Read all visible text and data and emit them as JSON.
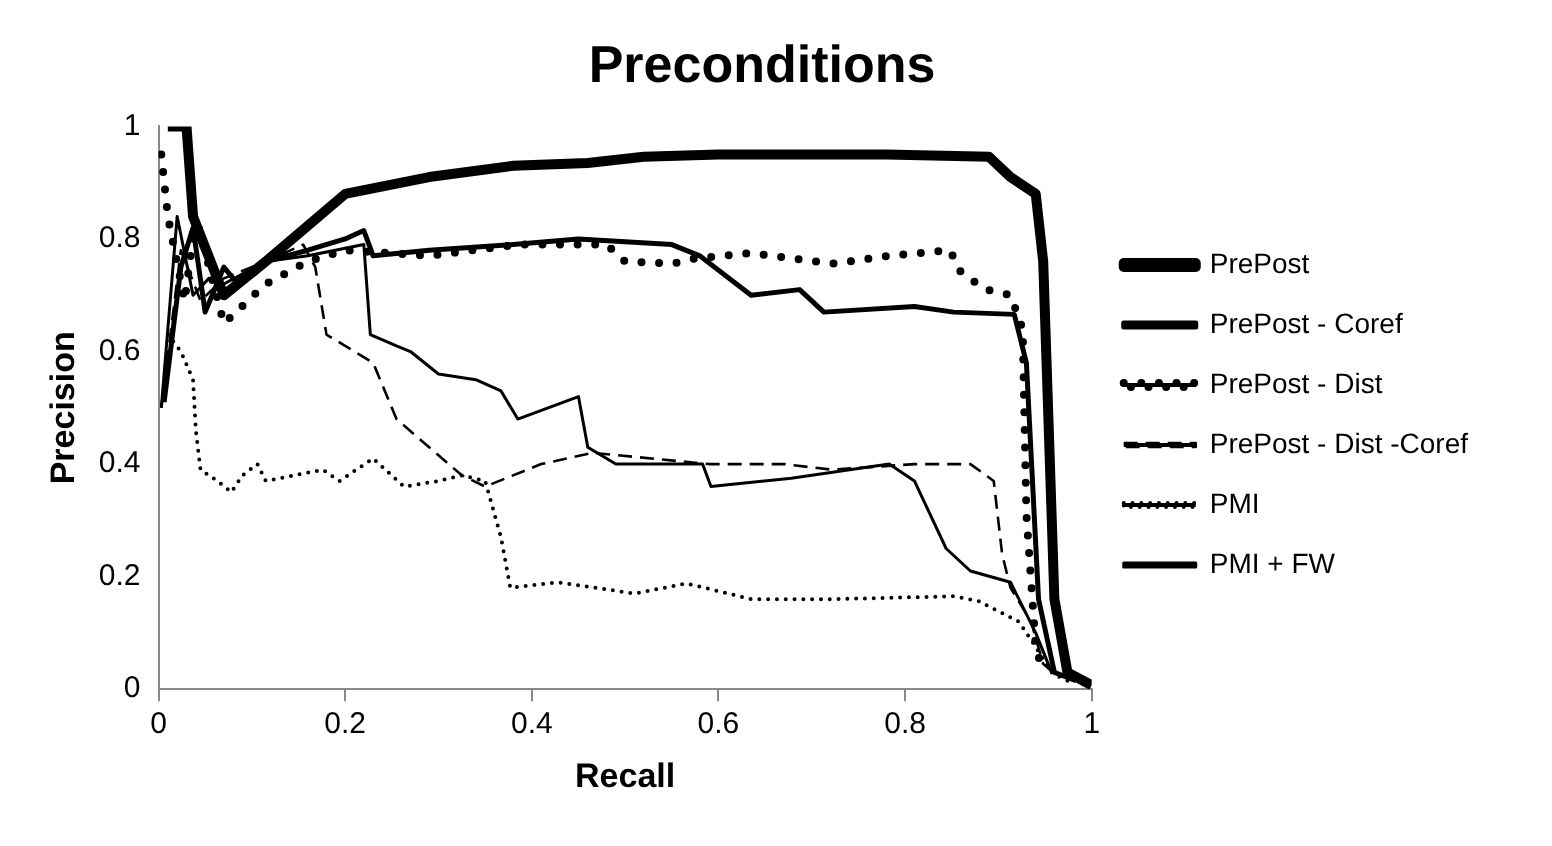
{
  "chart_data": {
    "type": "line",
    "title": "Preconditions",
    "xlabel": "Recall",
    "ylabel": "Precision",
    "xlim": [
      0,
      1
    ],
    "ylim": [
      0,
      1
    ],
    "xticks": [
      0,
      0.2,
      0.4,
      0.6,
      0.8,
      1
    ],
    "yticks": [
      0,
      0.2,
      0.4,
      0.6,
      0.8,
      1
    ],
    "grid": false,
    "legend": "right",
    "marker": "none",
    "series": [
      {
        "name": "PrePost",
        "color": "#000000",
        "line_style": "solid",
        "x": [
          0.01,
          0.03,
          0.037,
          0.07,
          0.115,
          0.2,
          0.29,
          0.38,
          0.46,
          0.52,
          0.6,
          0.78,
          0.89,
          0.913,
          0.94,
          0.948,
          0.96,
          0.974,
          1.0
        ],
        "values": [
          1,
          1,
          0.84,
          0.7,
          0.76,
          0.88,
          0.91,
          0.93,
          0.935,
          0.946,
          0.95,
          0.95,
          0.946,
          0.91,
          0.88,
          0.76,
          0.16,
          0.03,
          0.007
        ]
      },
      {
        "name": "PrePost - Coref",
        "color": "#000000",
        "line_style": "solid",
        "x": [
          0.006,
          0.024,
          0.037,
          0.05,
          0.07,
          0.085,
          0.115,
          0.16,
          0.2,
          0.22,
          0.23,
          0.29,
          0.38,
          0.45,
          0.55,
          0.58,
          0.635,
          0.687,
          0.713,
          0.81,
          0.852,
          0.917,
          0.93,
          0.943,
          0.96,
          0.983
        ],
        "values": [
          0.51,
          0.75,
          0.82,
          0.67,
          0.75,
          0.72,
          0.76,
          0.78,
          0.8,
          0.815,
          0.77,
          0.78,
          0.79,
          0.8,
          0.79,
          0.77,
          0.7,
          0.71,
          0.67,
          0.68,
          0.67,
          0.666,
          0.58,
          0.16,
          0.03,
          0.015
        ]
      },
      {
        "name": "PrePost - Dist",
        "color": "#000000",
        "line_style": "dotted",
        "x": [
          0.003,
          0.01,
          0.028,
          0.04,
          0.07,
          0.115,
          0.16,
          0.2,
          0.29,
          0.385,
          0.48,
          0.5,
          0.55,
          0.574,
          0.635,
          0.722,
          0.783,
          0.848,
          0.86,
          0.887,
          0.913,
          0.926,
          0.93,
          0.94,
          0.948
        ],
        "values": [
          0.95,
          0.84,
          0.69,
          0.84,
          0.65,
          0.72,
          0.76,
          0.78,
          0.77,
          0.79,
          0.79,
          0.76,
          0.756,
          0.765,
          0.775,
          0.756,
          0.77,
          0.78,
          0.74,
          0.71,
          0.7,
          0.64,
          0.31,
          0.075,
          0.03
        ]
      },
      {
        "name": "PrePost - Dist -Coref",
        "color": "#000000",
        "line_style": "dashed",
        "x": [
          0.003,
          0.024,
          0.045,
          0.07,
          0.115,
          0.155,
          0.168,
          0.18,
          0.2,
          0.23,
          0.255,
          0.29,
          0.325,
          0.35,
          0.41,
          0.465,
          0.59,
          0.67,
          0.722,
          0.81,
          0.87,
          0.895,
          0.904,
          0.913,
          0.935,
          0.948,
          0.965
        ],
        "values": [
          0.5,
          0.78,
          0.69,
          0.73,
          0.76,
          0.79,
          0.75,
          0.63,
          0.61,
          0.58,
          0.48,
          0.43,
          0.38,
          0.36,
          0.4,
          0.42,
          0.4,
          0.4,
          0.39,
          0.4,
          0.4,
          0.37,
          0.24,
          0.18,
          0.12,
          0.045,
          0.02
        ]
      },
      {
        "name": "PMI",
        "color": "#000000",
        "line_style": "dotted",
        "x": [
          0.01,
          0.024,
          0.037,
          0.04,
          0.045,
          0.063,
          0.078,
          0.09,
          0.106,
          0.115,
          0.176,
          0.194,
          0.23,
          0.263,
          0.3,
          0.325,
          0.35,
          0.367,
          0.377,
          0.428,
          0.51,
          0.566,
          0.635,
          0.722,
          0.852,
          0.878,
          0.922,
          0.94,
          0.957,
          0.974
        ],
        "values": [
          0.63,
          0.6,
          0.55,
          0.46,
          0.39,
          0.37,
          0.35,
          0.38,
          0.4,
          0.37,
          0.39,
          0.37,
          0.41,
          0.36,
          0.37,
          0.38,
          0.37,
          0.27,
          0.18,
          0.19,
          0.17,
          0.188,
          0.16,
          0.16,
          0.165,
          0.157,
          0.12,
          0.075,
          0.03,
          0.015
        ]
      },
      {
        "name": "PMI + FW",
        "color": "#000000",
        "line_style": "solid",
        "x": [
          0.003,
          0.02,
          0.037,
          0.054,
          0.07,
          0.115,
          0.16,
          0.22,
          0.227,
          0.255,
          0.27,
          0.3,
          0.34,
          0.367,
          0.385,
          0.45,
          0.46,
          0.49,
          0.52,
          0.583,
          0.592,
          0.678,
          0.783,
          0.81,
          0.844,
          0.87,
          0.913,
          0.94,
          0.957
        ],
        "values": [
          0.5,
          0.84,
          0.7,
          0.73,
          0.72,
          0.76,
          0.77,
          0.79,
          0.63,
          0.61,
          0.6,
          0.56,
          0.55,
          0.53,
          0.48,
          0.52,
          0.43,
          0.4,
          0.4,
          0.4,
          0.36,
          0.375,
          0.4,
          0.37,
          0.25,
          0.21,
          0.19,
          0.1,
          0.03
        ]
      }
    ]
  }
}
